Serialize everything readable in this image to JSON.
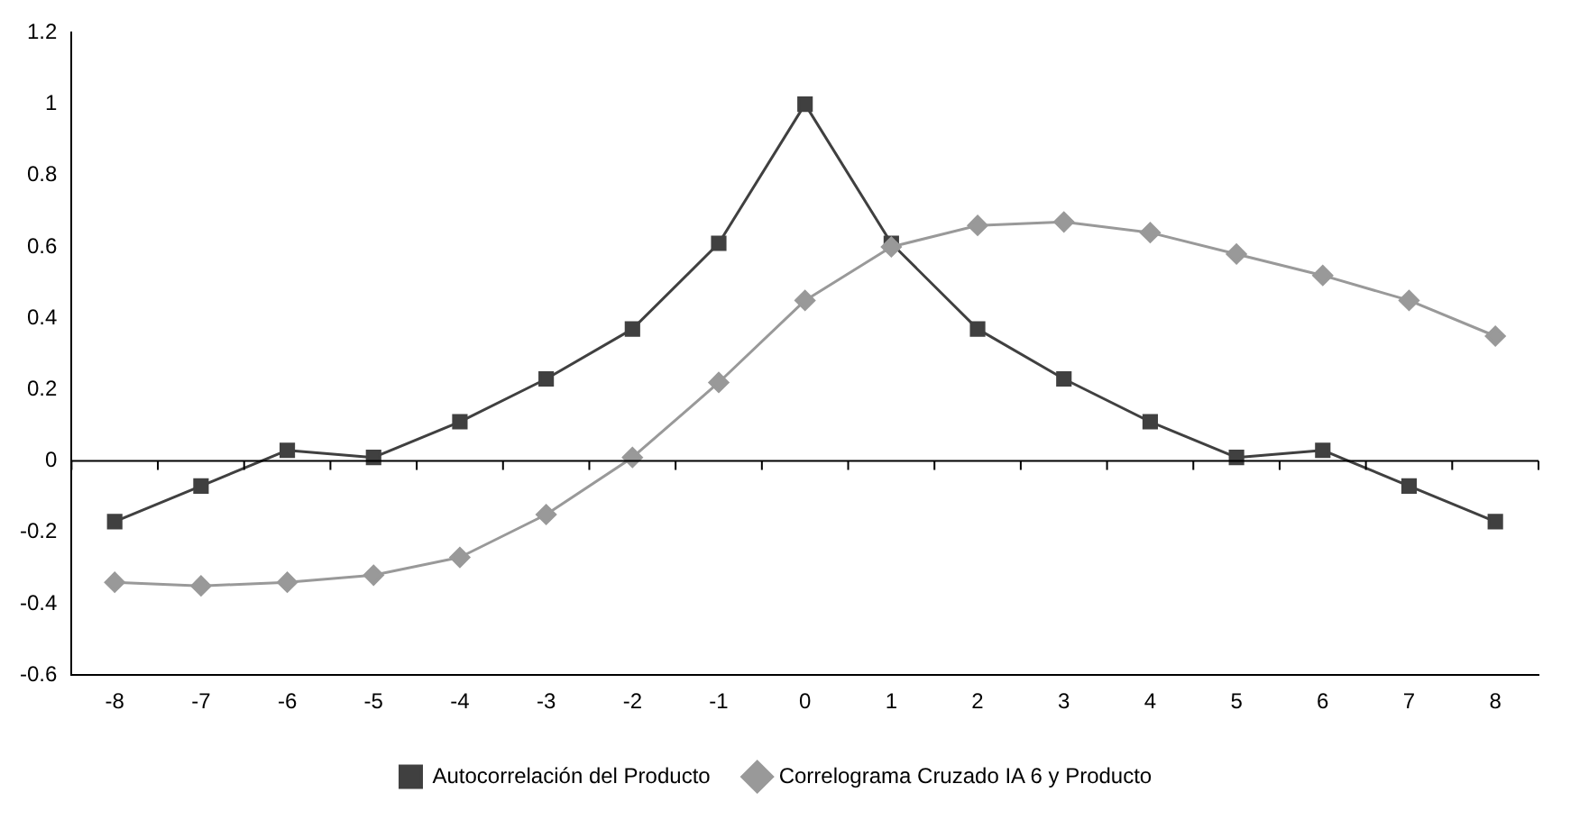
{
  "chart_data": {
    "type": "line",
    "categories": [
      "-8",
      "-7",
      "-6",
      "-5",
      "-4",
      "-3",
      "-2",
      "-1",
      "0",
      "1",
      "2",
      "3",
      "4",
      "5",
      "6",
      "7",
      "8"
    ],
    "series": [
      {
        "name": "Autocorrelación del Producto",
        "color": "#404040",
        "marker": "square",
        "values": [
          -0.17,
          -0.07,
          0.03,
          0.01,
          0.11,
          0.23,
          0.37,
          0.61,
          1.0,
          0.61,
          0.37,
          0.23,
          0.11,
          0.01,
          0.03,
          -0.07,
          -0.17
        ]
      },
      {
        "name": "Correlograma Cruzado IA 6 y Producto",
        "color": "#999999",
        "marker": "diamond",
        "values": [
          -0.34,
          -0.35,
          -0.34,
          -0.32,
          -0.27,
          -0.15,
          0.01,
          0.22,
          0.45,
          0.6,
          0.66,
          0.67,
          0.64,
          0.58,
          0.52,
          0.45,
          0.35
        ]
      }
    ],
    "ylim": [
      -0.6,
      1.2
    ],
    "yticks": [
      -0.6,
      -0.4,
      -0.2,
      0,
      0.2,
      0.4,
      0.6,
      0.8,
      1,
      1.2
    ],
    "ref_lines": [
      {
        "axis": "y",
        "value": 0,
        "color": "#000000"
      }
    ],
    "grid": false,
    "legend": "bottom",
    "line_style": "solid"
  }
}
